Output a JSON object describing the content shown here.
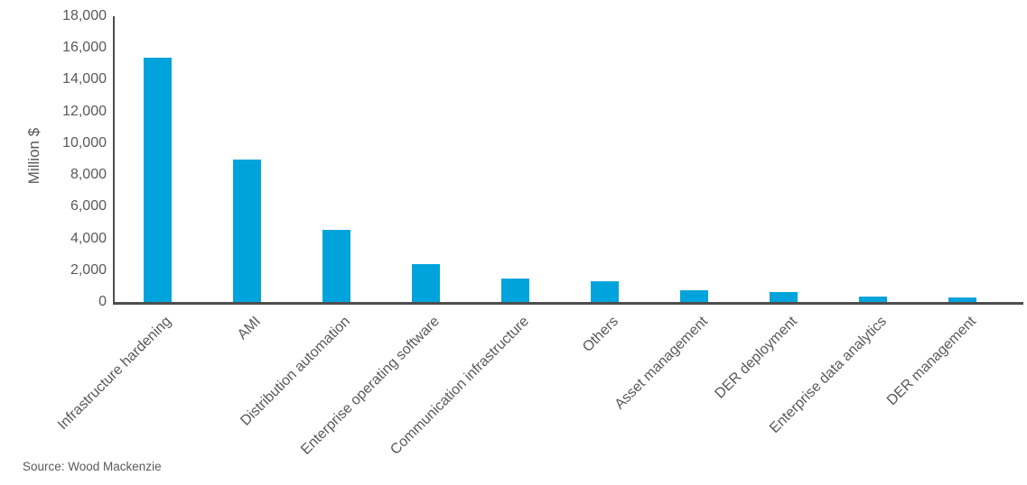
{
  "chart_data": {
    "type": "bar",
    "title": "",
    "xlabel": "",
    "ylabel": "Million $",
    "categories": [
      "Infrastructure hardening",
      "AMI",
      "Distribution automation",
      "Enterprise operating software",
      "Communication infrastructure",
      "Others",
      "Asset management",
      "DER deployment",
      "Enterprise data analytics",
      "DER management"
    ],
    "values": [
      15400,
      8950,
      4550,
      2400,
      1500,
      1300,
      750,
      600,
      350,
      300
    ],
    "ylim": [
      0,
      18000
    ],
    "ytick_step": 2000,
    "ytick_labels": [
      "0",
      "2,000",
      "4,000",
      "6,000",
      "8,000",
      "10,000",
      "12,000",
      "14,000",
      "16,000",
      "18,000"
    ],
    "grid": false,
    "legend": "none",
    "bar_color": "#00a3dc",
    "axis_color": "#4d4d4d",
    "text_color": "#595959"
  },
  "footer": {
    "source": "Source: Wood Mackenzie"
  }
}
